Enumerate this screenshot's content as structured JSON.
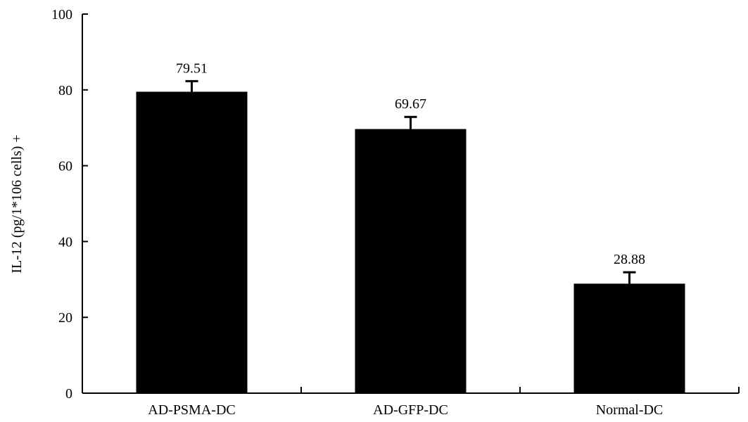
{
  "chart_data": {
    "type": "bar",
    "categories": [
      "AD-PSMA-DC",
      "AD-GFP-DC",
      "Normal-DC"
    ],
    "values": [
      79.51,
      69.67,
      28.88
    ],
    "error": [
      2.8,
      3.2,
      3.0
    ],
    "data_labels": [
      "79.51",
      "69.67",
      "28.88"
    ],
    "ylabel": "IL-12 (pg/1*106 cells) +",
    "xlabel": "",
    "ylim": [
      0,
      100
    ],
    "yticks": [
      0,
      20,
      40,
      60,
      80,
      100
    ],
    "ytick_labels": [
      "0",
      "20",
      "40",
      "60",
      "80",
      "100"
    ],
    "grid": false,
    "colors": {
      "bar": "#000000",
      "axis": "#000000",
      "background": "#ffffff"
    }
  }
}
